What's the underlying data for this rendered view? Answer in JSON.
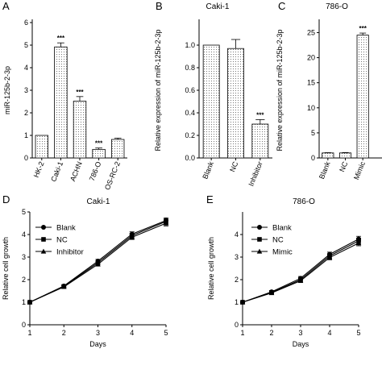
{
  "chart_data": [
    {
      "panel": "A",
      "type": "bar",
      "title": "",
      "ylabel": "miR-125b-2-3p",
      "xlabel": "",
      "ylim": [
        0,
        6
      ],
      "yticks": [
        "0",
        "1",
        "2",
        "3",
        "4",
        "5",
        "6"
      ],
      "categories": [
        "HK-2",
        "Caki-1",
        "ACHN",
        "786-O",
        "OS-RC-2"
      ],
      "values": [
        1.0,
        4.92,
        2.52,
        0.38,
        0.82
      ],
      "errors": [
        0.0,
        0.18,
        0.2,
        0.06,
        0.06
      ],
      "significance": [
        "",
        "***",
        "***",
        "***",
        ""
      ]
    },
    {
      "panel": "B",
      "type": "bar",
      "title": "Caki-1",
      "ylabel": "Relative expression of miR-125b-2-3p",
      "xlabel": "",
      "ylim": [
        0,
        1.2
      ],
      "yticks": [
        "0.0",
        "0.2",
        "0.4",
        "0.6",
        "0.8",
        "1.0"
      ],
      "categories": [
        "Blank",
        "NC",
        "Inhibitor"
      ],
      "values": [
        1.0,
        0.97,
        0.3
      ],
      "errors": [
        0.0,
        0.08,
        0.04
      ],
      "significance": [
        "",
        "",
        "***"
      ]
    },
    {
      "panel": "C",
      "type": "bar",
      "title": "786-O",
      "ylabel": "Relative expression of miR-125b-2-3p",
      "xlabel": "",
      "ylim": [
        0,
        27
      ],
      "yticks": [
        "0",
        "5",
        "10",
        "15",
        "20",
        "25"
      ],
      "categories": [
        "Blank",
        "NC",
        "Mimic"
      ],
      "values": [
        1.0,
        1.0,
        24.5
      ],
      "errors": [
        0.05,
        0.08,
        0.4
      ],
      "significance": [
        "",
        "",
        "***"
      ]
    },
    {
      "panel": "D",
      "type": "line",
      "title": "Caki-1",
      "xlabel": "Days",
      "ylabel": "Relative cell growth",
      "x": [
        1,
        2,
        3,
        4,
        5
      ],
      "xlim": [
        1,
        5
      ],
      "ylim": [
        0,
        5
      ],
      "xticks": [
        "1",
        "2",
        "3",
        "4",
        "5"
      ],
      "yticks": [
        "0",
        "1",
        "2",
        "3",
        "4",
        "5"
      ],
      "legend_position": "top-left",
      "series": [
        {
          "name": "Blank",
          "marker": "circle",
          "values": [
            1.0,
            1.72,
            2.82,
            4.02,
            4.62
          ],
          "errors": [
            0.02,
            0.05,
            0.08,
            0.1,
            0.12
          ]
        },
        {
          "name": "NC",
          "marker": "square",
          "values": [
            1.0,
            1.7,
            2.75,
            3.95,
            4.58
          ],
          "errors": [
            0.02,
            0.05,
            0.08,
            0.1,
            0.12
          ]
        },
        {
          "name": "Inhibitor",
          "marker": "triangle",
          "values": [
            1.0,
            1.68,
            2.68,
            3.88,
            4.5
          ],
          "errors": [
            0.02,
            0.05,
            0.08,
            0.1,
            0.12
          ]
        }
      ]
    },
    {
      "panel": "E",
      "type": "line",
      "title": "786-O",
      "xlabel": "Days",
      "ylabel": "Relative cell growth",
      "x": [
        1,
        2,
        3,
        4,
        5
      ],
      "xlim": [
        1,
        5
      ],
      "ylim": [
        0,
        5
      ],
      "xticks": [
        "1",
        "2",
        "3",
        "4",
        "5"
      ],
      "yticks": [
        "0",
        "1",
        "2",
        "3",
        "4"
      ],
      "legend_position": "top-left",
      "series": [
        {
          "name": "Blank",
          "marker": "circle",
          "values": [
            1.0,
            1.46,
            2.06,
            3.12,
            3.8
          ],
          "errors": [
            0.02,
            0.06,
            0.08,
            0.1,
            0.12
          ]
        },
        {
          "name": "NC",
          "marker": "square",
          "values": [
            1.0,
            1.43,
            2.0,
            3.05,
            3.72
          ],
          "errors": [
            0.02,
            0.06,
            0.08,
            0.1,
            0.12
          ]
        },
        {
          "name": "Mimic",
          "marker": "triangle",
          "values": [
            1.0,
            1.41,
            1.95,
            2.98,
            3.62
          ],
          "errors": [
            0.02,
            0.06,
            0.08,
            0.1,
            0.12
          ]
        }
      ]
    }
  ]
}
